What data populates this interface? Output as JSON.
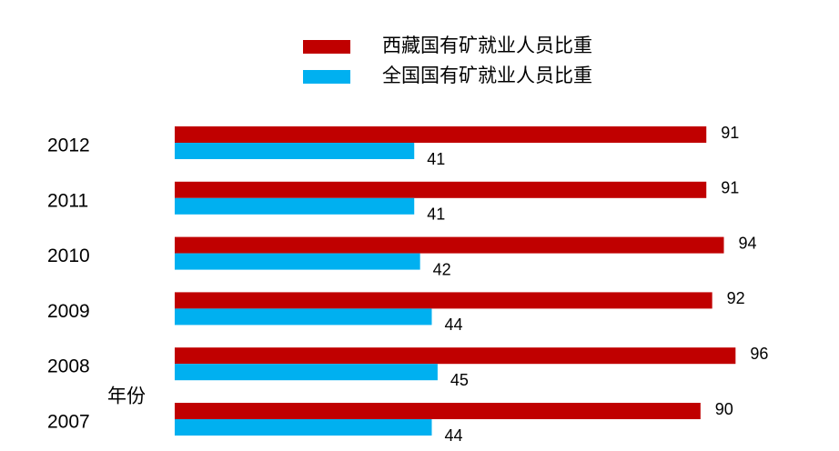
{
  "chart_data": {
    "type": "bar",
    "orientation": "horizontal",
    "y_label": "年份",
    "categories": [
      "2012",
      "2011",
      "2010",
      "2009",
      "2008",
      "2007"
    ],
    "series": [
      {
        "name": "西藏国有矿就业人员比重",
        "color": "#c00000",
        "values": [
          91,
          91,
          94,
          92,
          96,
          90
        ]
      },
      {
        "name": "全国国有矿就业人员比重",
        "color": "#00b0f0",
        "values": [
          41,
          41,
          42,
          44,
          45,
          44
        ]
      }
    ],
    "legend": "top"
  }
}
